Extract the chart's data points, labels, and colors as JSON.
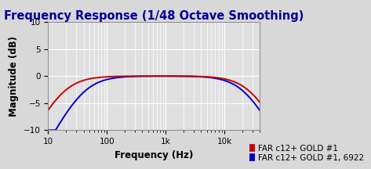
{
  "title": "Frequency Response (1/48 Octave Smoothing)",
  "xlabel": "Frequency (Hz)",
  "ylabel": "Magnitude (dB)",
  "xlim": [
    10,
    40000
  ],
  "ylim": [
    -10,
    10
  ],
  "yticks": [
    -10,
    -5,
    0,
    5,
    10
  ],
  "legend": [
    {
      "label": "FAR c12+ GOLD #1",
      "color": "#cc0000"
    },
    {
      "label": "FAR c12+ GOLD #1, 6922",
      "color": "#0000cc"
    }
  ],
  "background_color": "#e0e0e0",
  "grid_color": "#ffffff",
  "title_color": "#000099",
  "title_fontsize": 10.5,
  "axis_label_fontsize": 8.5,
  "tick_fontsize": 7.5,
  "legend_fontsize": 7.5,
  "line_width": 1.4
}
